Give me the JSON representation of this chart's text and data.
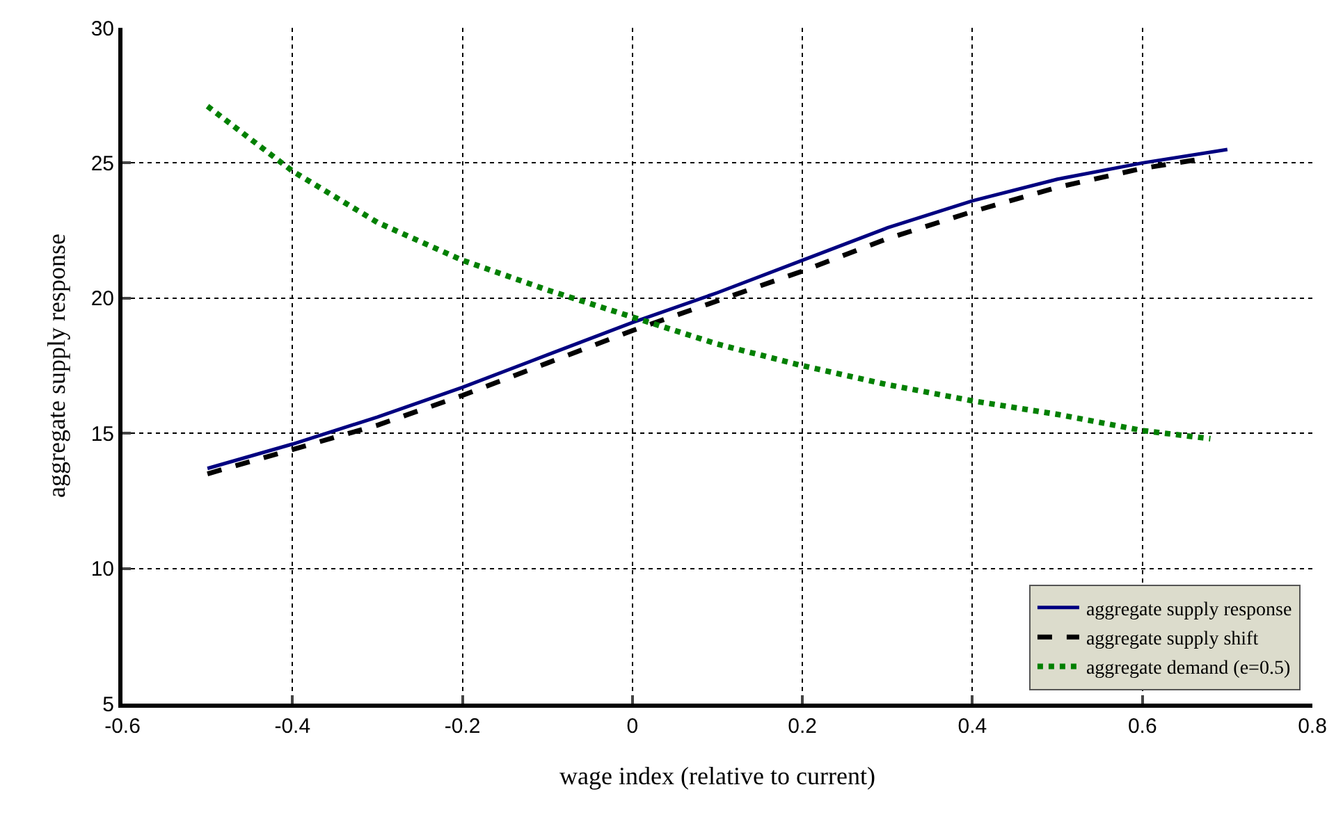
{
  "chart_data": {
    "type": "line",
    "xlabel": "wage index (relative to current)",
    "ylabel": "aggregate supply response",
    "xlim": [
      -0.6,
      0.8
    ],
    "xticks": [
      -0.6,
      -0.4,
      -0.2,
      0,
      0.2,
      0.4,
      0.6,
      0.8
    ],
    "ylim": [
      5,
      30
    ],
    "yticks": [
      5,
      10,
      15,
      20,
      25,
      30
    ],
    "grid": true,
    "legend": "bottom right",
    "marker": "none",
    "series": [
      {
        "name": "aggregate supply response",
        "color": "#000080",
        "line_style": "solid",
        "x": [
          -0.5,
          -0.4,
          -0.3,
          -0.2,
          -0.1,
          0,
          0.1,
          0.2,
          0.3,
          0.4,
          0.5,
          0.6,
          0.7
        ],
        "values": [
          13.7,
          14.6,
          15.6,
          16.7,
          17.9,
          19.1,
          20.2,
          21.4,
          22.6,
          23.6,
          24.4,
          25.0,
          25.5
        ]
      },
      {
        "name": "aggregate supply shift",
        "color": "#000000",
        "line_style": "dashed",
        "x": [
          -0.5,
          -0.4,
          -0.3,
          -0.2,
          -0.1,
          0,
          0.1,
          0.2,
          0.3,
          0.4,
          0.5,
          0.6,
          0.68
        ],
        "values": [
          13.5,
          14.4,
          15.3,
          16.4,
          17.6,
          18.8,
          19.9,
          21.0,
          22.2,
          23.2,
          24.1,
          24.8,
          25.2
        ]
      },
      {
        "name": "aggregate demand (e=0.5)",
        "color": "#008000",
        "line_style": "dotted",
        "x": [
          -0.5,
          -0.45,
          -0.4,
          -0.3,
          -0.2,
          -0.1,
          0,
          0.1,
          0.2,
          0.3,
          0.4,
          0.5,
          0.6,
          0.68
        ],
        "values": [
          27.1,
          25.9,
          24.7,
          22.8,
          21.4,
          20.3,
          19.3,
          18.3,
          17.5,
          16.8,
          16.2,
          15.7,
          15.1,
          14.8
        ]
      }
    ]
  }
}
